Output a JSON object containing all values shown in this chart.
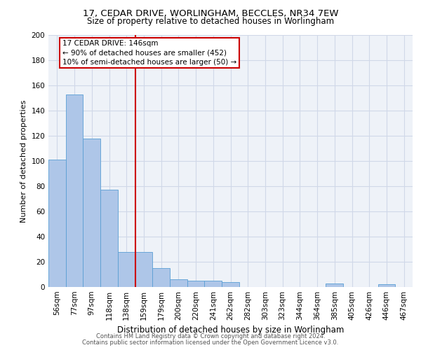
{
  "title_line1": "17, CEDAR DRIVE, WORLINGHAM, BECCLES, NR34 7EW",
  "title_line2": "Size of property relative to detached houses in Worlingham",
  "xlabel": "Distribution of detached houses by size in Worlingham",
  "ylabel": "Number of detached properties",
  "footer_line1": "Contains HM Land Registry data © Crown copyright and database right 2024.",
  "footer_line2": "Contains public sector information licensed under the Open Government Licence v3.0.",
  "bin_labels": [
    "56sqm",
    "77sqm",
    "97sqm",
    "118sqm",
    "138sqm",
    "159sqm",
    "179sqm",
    "200sqm",
    "220sqm",
    "241sqm",
    "262sqm",
    "282sqm",
    "303sqm",
    "323sqm",
    "344sqm",
    "364sqm",
    "385sqm",
    "405sqm",
    "426sqm",
    "446sqm",
    "467sqm"
  ],
  "bar_heights": [
    101,
    153,
    118,
    77,
    28,
    28,
    15,
    6,
    5,
    5,
    4,
    0,
    0,
    0,
    0,
    0,
    3,
    0,
    0,
    2,
    0
  ],
  "bar_color": "#aec6e8",
  "bar_edge_color": "#5a9fd4",
  "property_line_x": 4.5,
  "annotation_text": "17 CEDAR DRIVE: 146sqm\n← 90% of detached houses are smaller (452)\n10% of semi-detached houses are larger (50) →",
  "annotation_box_color": "#ffffff",
  "annotation_box_edge_color": "#cc0000",
  "vline_color": "#cc0000",
  "ylim": [
    0,
    200
  ],
  "yticks": [
    0,
    20,
    40,
    60,
    80,
    100,
    120,
    140,
    160,
    180,
    200
  ],
  "grid_color": "#d0d8e8",
  "background_color": "#eef2f8",
  "title1_fontsize": 9.5,
  "title2_fontsize": 8.5,
  "xlabel_fontsize": 8.5,
  "ylabel_fontsize": 8.0,
  "tick_fontsize": 7.5,
  "footer_fontsize": 6.0,
  "ann_fontsize": 7.5
}
